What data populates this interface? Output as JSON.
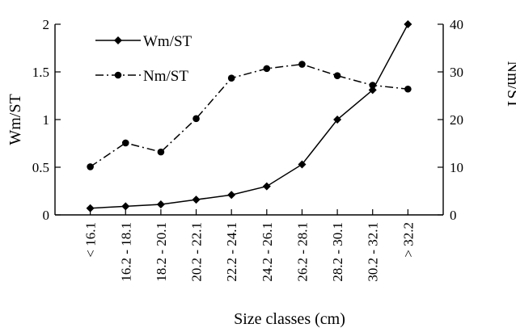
{
  "chart_data": {
    "type": "line",
    "xlabel": "Size classes (cm)",
    "ylabel_left": "Wm/ST",
    "ylabel_right": "Nm/ST",
    "categories": [
      "< 16.1",
      "16.2 - 18.1",
      "18.2 - 20.1",
      "20.2 - 22.1",
      "22.2 - 24.1",
      "24.2 - 26.1",
      "26.2 - 28.1",
      "28.2 - 30.1",
      "30.2 - 32.1",
      "> 32.2"
    ],
    "ylim_left": [
      0,
      2
    ],
    "yticks_left": [
      "0",
      "0.5",
      "1",
      "1.5",
      "2"
    ],
    "ylim_right": [
      0,
      40
    ],
    "yticks_right": [
      "0",
      "10",
      "20",
      "30",
      "40"
    ],
    "grid": false,
    "legend_position": "top-left",
    "series": [
      {
        "name": "Wm/ST",
        "axis": "left",
        "marker": "diamond",
        "line_style": "solid",
        "values": [
          0.07,
          0.09,
          0.11,
          0.16,
          0.21,
          0.3,
          0.53,
          1.0,
          1.31,
          2.0
        ]
      },
      {
        "name": "Nm/ST",
        "axis": "right",
        "marker": "circle",
        "line_style": "dash-dot",
        "values": [
          10.1,
          15.1,
          13.2,
          20.2,
          28.7,
          30.7,
          31.6,
          29.2,
          27.2,
          26.4
        ]
      }
    ]
  }
}
